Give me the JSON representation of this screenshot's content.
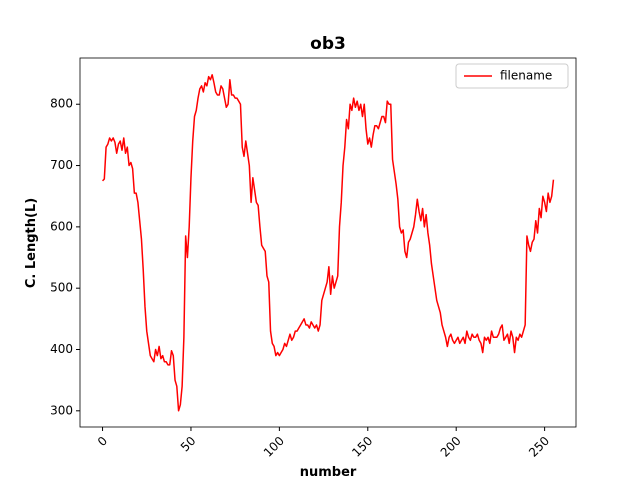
{
  "chart_data": {
    "type": "line",
    "title": "ob3",
    "xlabel": "number",
    "ylabel": "C. Length(L)",
    "x": [
      0,
      1,
      2,
      3,
      4,
      5,
      6,
      7,
      8,
      9,
      10,
      11,
      12,
      13,
      14,
      15,
      16,
      17,
      18,
      19,
      20,
      21,
      22,
      23,
      24,
      25,
      26,
      27,
      28,
      29,
      30,
      31,
      32,
      33,
      34,
      35,
      36,
      37,
      38,
      39,
      40,
      41,
      42,
      43,
      44,
      45,
      46,
      47,
      48,
      49,
      50,
      51,
      52,
      53,
      54,
      55,
      56,
      57,
      58,
      59,
      60,
      61,
      62,
      63,
      64,
      65,
      66,
      67,
      68,
      69,
      70,
      71,
      72,
      73,
      74,
      75,
      76,
      77,
      78,
      79,
      80,
      81,
      82,
      83,
      84,
      85,
      86,
      87,
      88,
      89,
      90,
      91,
      92,
      93,
      94,
      95,
      96,
      97,
      98,
      99,
      100,
      101,
      102,
      103,
      104,
      105,
      106,
      107,
      108,
      109,
      110,
      111,
      112,
      113,
      114,
      115,
      116,
      117,
      118,
      119,
      120,
      121,
      122,
      123,
      124,
      125,
      126,
      127,
      128,
      129,
      130,
      131,
      132,
      133,
      134,
      135,
      136,
      137,
      138,
      139,
      140,
      141,
      142,
      143,
      144,
      145,
      146,
      147,
      148,
      149,
      150,
      151,
      152,
      153,
      154,
      155,
      156,
      157,
      158,
      159,
      160,
      161,
      162,
      163,
      164,
      165,
      166,
      167,
      168,
      169,
      170,
      171,
      172,
      173,
      174,
      175,
      176,
      177,
      178,
      179,
      180,
      181,
      182,
      183,
      184,
      185,
      186,
      187,
      188,
      189,
      190,
      191,
      192,
      193,
      194,
      195,
      196,
      197,
      198,
      199,
      200,
      201,
      202,
      203,
      204,
      205,
      206,
      207,
      208,
      209,
      210,
      211,
      212,
      213,
      214,
      215,
      216,
      217,
      218,
      219,
      220,
      221,
      222,
      223,
      224,
      225,
      226,
      227,
      228,
      229,
      230,
      231,
      232,
      233,
      234,
      235,
      236,
      237,
      238,
      239,
      240,
      241,
      242,
      243,
      244,
      245,
      246,
      247,
      248,
      249,
      250,
      251,
      252,
      253,
      254,
      255
    ],
    "series": [
      {
        "name": "filename",
        "color": "#ff0000",
        "values": [
          675,
          678,
          730,
          735,
          745,
          740,
          745,
          738,
          720,
          735,
          740,
          725,
          745,
          720,
          730,
          700,
          705,
          695,
          655,
          655,
          640,
          610,
          580,
          530,
          470,
          430,
          410,
          390,
          385,
          380,
          400,
          390,
          405,
          385,
          390,
          380,
          380,
          375,
          375,
          398,
          390,
          350,
          340,
          300,
          310,
          340,
          420,
          585,
          550,
          600,
          680,
          740,
          780,
          790,
          810,
          825,
          830,
          820,
          835,
          830,
          845,
          840,
          848,
          835,
          820,
          815,
          815,
          830,
          825,
          810,
          795,
          800,
          840,
          815,
          815,
          810,
          810,
          805,
          800,
          730,
          715,
          740,
          720,
          700,
          640,
          680,
          660,
          640,
          635,
          600,
          570,
          565,
          560,
          520,
          510,
          430,
          410,
          405,
          390,
          395,
          390,
          395,
          400,
          410,
          405,
          415,
          425,
          415,
          420,
          430,
          430,
          435,
          440,
          445,
          450,
          440,
          440,
          435,
          445,
          440,
          435,
          440,
          430,
          440,
          480,
          490,
          500,
          510,
          535,
          490,
          520,
          500,
          510,
          520,
          600,
          640,
          700,
          730,
          775,
          760,
          800,
          790,
          810,
          795,
          805,
          790,
          800,
          780,
          800,
          760,
          735,
          745,
          730,
          750,
          765,
          765,
          760,
          770,
          780,
          780,
          770,
          805,
          800,
          800,
          710,
          690,
          670,
          645,
          600,
          590,
          595,
          560,
          550,
          575,
          580,
          590,
          600,
          620,
          645,
          625,
          610,
          630,
          600,
          620,
          590,
          570,
          540,
          520,
          500,
          480,
          470,
          460,
          440,
          430,
          420,
          405,
          420,
          425,
          415,
          410,
          415,
          420,
          410,
          415,
          420,
          410,
          430,
          420,
          415,
          425,
          420,
          420,
          425,
          415,
          410,
          395,
          420,
          415,
          420,
          410,
          430,
          420,
          420,
          420,
          425,
          435,
          440,
          415,
          420,
          425,
          410,
          430,
          420,
          395,
          420,
          415,
          425,
          420,
          430,
          440,
          585,
          570,
          560,
          575,
          580,
          610,
          590,
          630,
          615,
          650,
          640,
          625,
          655,
          640,
          650,
          677
        ]
      }
    ],
    "xlim": [
      -12.75,
      267.75
    ],
    "ylim": [
      273.6,
      875.4
    ],
    "xticks": [
      0,
      50,
      100,
      150,
      200,
      250
    ],
    "yticks": [
      300,
      400,
      500,
      600,
      700,
      800
    ],
    "legend": "upper right"
  }
}
